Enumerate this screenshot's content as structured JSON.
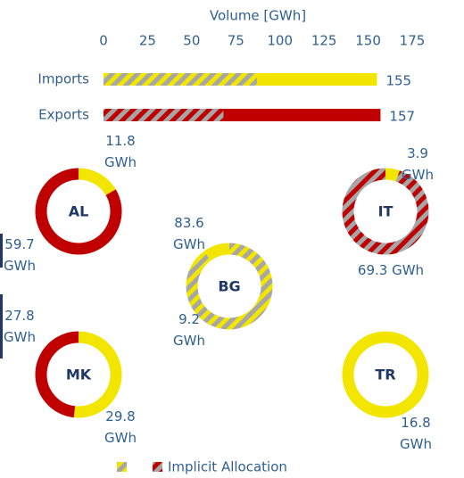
{
  "chart_data": [
    {
      "type": "bar",
      "orientation": "horizontal",
      "xlabel": "Volume [GWh]",
      "categories": [
        "Imports",
        "Exports"
      ],
      "colors": [
        "#f2e600",
        "#c00000"
      ],
      "series": [
        {
          "name": "Implicit Allocation",
          "hatched": true,
          "values": [
            87,
            68
          ]
        },
        {
          "hatched": false,
          "values": [
            68,
            89
          ]
        }
      ],
      "totals": [
        155,
        157
      ],
      "xlim": [
        0,
        175
      ],
      "xticks": [
        0,
        25,
        50,
        75,
        100,
        125,
        150,
        175
      ]
    },
    {
      "type": "donut",
      "charts": [
        {
          "label": "AL",
          "segments": [
            {
              "value": 11.8,
              "value_label": "11.8 GWh",
              "color": "#f2e600",
              "hatched": false
            },
            {
              "value": 59.7,
              "value_label": "59.7 GWh",
              "color": "#c00000",
              "hatched": false
            }
          ]
        },
        {
          "label": "IT",
          "segments": [
            {
              "value": 3.9,
              "value_label": "3.9 GWh",
              "color": "#f2e600",
              "hatched": false
            },
            {
              "value": 69.3,
              "value_label": "69.3 GWh",
              "color": "#c00000",
              "hatched": true
            }
          ]
        },
        {
          "label": "BG",
          "segments": [
            {
              "value": 83.6,
              "value_label": "83.6 GWh",
              "color": "#f2e600",
              "hatched": true
            },
            {
              "value": 9.2,
              "value_label": "9.2 GWh",
              "color": "#f2e600",
              "hatched": false
            }
          ]
        },
        {
          "label": "MK",
          "segments": [
            {
              "value": 29.8,
              "value_label": "29.8 GWh",
              "color": "#f2e600",
              "hatched": false
            },
            {
              "value": 27.8,
              "value_label": "27.8 GWh",
              "color": "#c00000",
              "hatched": false
            }
          ]
        },
        {
          "label": "TR",
          "segments": [
            {
              "value": 16.8,
              "value_label": "16.8 GWh",
              "color": "#f2e600",
              "hatched": false
            }
          ]
        }
      ]
    }
  ]
}
